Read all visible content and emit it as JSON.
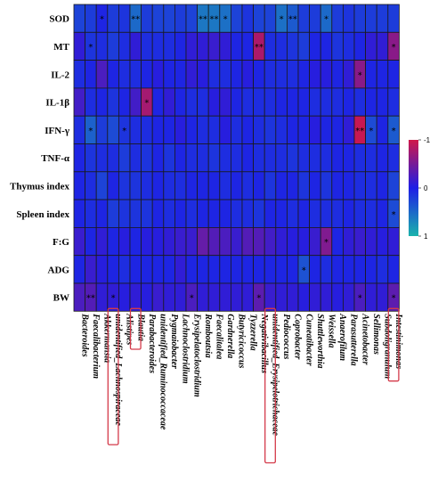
{
  "chart_data": {
    "type": "heatmap",
    "rows": [
      "SOD",
      "MT",
      "IL-2",
      "IL-1β",
      "IFN-γ",
      "TNF-α",
      "Thymus index",
      "Spleen index",
      "F:G",
      "ADG",
      "BW"
    ],
    "columns": [
      "Bacteroides",
      "Faecalibacterium",
      "Akkermansia",
      "unidentified_Lachnospiraceae",
      "Alistipes",
      "Blautia",
      "Parabacteroides",
      "unidentified_Ruminococcaceae",
      "Pygmaiobacter",
      "Lachnoclostridium",
      "Erysipelatoclostridium",
      "Romboutsia",
      "Faecalitalea",
      "Gardnerella",
      "Butyricicoccus",
      "Tyzzerella",
      "Negativibacillus",
      "unidentified_Erysipelotrichaceae",
      "Pediococcus",
      "Coprobacter",
      "Cuneatibacter",
      "Shuttleworthia",
      "Weissella",
      "Anaerofilum",
      "Parasutterella",
      "Acinetobacter",
      "Sellimonas",
      "Subdoligranulum",
      "Intestinimonas"
    ],
    "values": [
      [
        0.25,
        0.2,
        0.05,
        0.2,
        0.15,
        0.5,
        0.2,
        0.25,
        0.25,
        0.2,
        0.25,
        0.6,
        0.6,
        0.55,
        0.25,
        0.15,
        0.25,
        0.25,
        0.55,
        0.4,
        0.2,
        0.2,
        0.5,
        0.2,
        0.15,
        0.2,
        0.2,
        0.2,
        0.2
      ],
      [
        -0.1,
        0.15,
        0.1,
        0.2,
        0.1,
        -0.1,
        0.1,
        0.1,
        0.1,
        0.05,
        -0.1,
        -0.1,
        -0.15,
        -0.1,
        0.05,
        0.05,
        -0.8,
        0.1,
        0.1,
        0.15,
        0.2,
        0.05,
        0.05,
        0.15,
        0.1,
        0.05,
        -0.1,
        -0.1,
        -0.6
      ],
      [
        0.1,
        0.05,
        -0.25,
        0.05,
        0.1,
        0.1,
        0.05,
        -0.05,
        0.05,
        0.05,
        -0.1,
        -0.05,
        0.1,
        0.1,
        0.05,
        -0.05,
        0.05,
        0.1,
        0.1,
        0.1,
        0.05,
        -0.05,
        -0.05,
        0.05,
        -0.1,
        -0.6,
        0.05,
        0.05,
        0.05
      ],
      [
        -0.2,
        0.1,
        0.05,
        0.15,
        0.05,
        -0.2,
        -0.75,
        0.05,
        -0.1,
        0.05,
        0.1,
        0.1,
        -0.05,
        -0.1,
        0.05,
        0.1,
        0.1,
        0.1,
        0.05,
        0.05,
        0.05,
        0.1,
        0.1,
        0.1,
        0.05,
        0.1,
        0.05,
        0.05,
        0.1
      ],
      [
        0.1,
        0.45,
        0.2,
        0.3,
        0.15,
        0.1,
        0.1,
        0.05,
        0.05,
        -0.05,
        0.05,
        0.1,
        0.1,
        -0.05,
        0.1,
        0.05,
        0.1,
        0.15,
        0.1,
        0.05,
        0.05,
        -0.05,
        0.05,
        0.05,
        -0.1,
        -0.95,
        0.3,
        0.05,
        0.4
      ],
      [
        0.05,
        0.15,
        0.1,
        0.1,
        0.2,
        0.1,
        0.15,
        0.05,
        0.15,
        0.05,
        0.1,
        0.1,
        0.15,
        0.1,
        0.1,
        0.05,
        0.1,
        0.1,
        0.1,
        0.15,
        0.1,
        0.1,
        0.1,
        0.05,
        0.05,
        0.1,
        0.1,
        0.05,
        0.1
      ],
      [
        0.05,
        0.1,
        0.25,
        0.05,
        0.15,
        0.15,
        0.1,
        0.05,
        0.1,
        0.1,
        0.05,
        0.05,
        0.05,
        0.1,
        0.05,
        0.1,
        0.05,
        0.15,
        0.05,
        0.05,
        0.15,
        0.05,
        0.15,
        0.05,
        0.05,
        0.1,
        0.1,
        0.05,
        0.25
      ],
      [
        0.05,
        0.1,
        0.05,
        0.2,
        0.15,
        0.15,
        0.15,
        0.05,
        0.1,
        0.05,
        0.1,
        0.05,
        0.05,
        0.05,
        0.1,
        0.1,
        0.15,
        0.05,
        0.05,
        0.1,
        0.05,
        0.1,
        0.1,
        0.1,
        0.05,
        0.1,
        0.1,
        0.05,
        0.3
      ],
      [
        -0.15,
        0.05,
        -0.1,
        0.05,
        -0.05,
        0.05,
        -0.05,
        -0.05,
        -0.1,
        -0.15,
        -0.15,
        -0.4,
        -0.3,
        -0.25,
        -0.15,
        -0.3,
        -0.3,
        -0.2,
        -0.1,
        -0.05,
        -0.05,
        -0.15,
        -0.55,
        0.05,
        -0.1,
        -0.15,
        -0.1,
        -0.05,
        -0.1
      ],
      [
        0.05,
        -0.15,
        -0.05,
        0.05,
        0.1,
        0.05,
        0.05,
        0.05,
        0.05,
        -0.1,
        0.05,
        0.05,
        0.05,
        0.05,
        0.05,
        0.05,
        0.05,
        0.05,
        0.05,
        0.05,
        0.35,
        0.05,
        0.1,
        0.05,
        0.05,
        0.05,
        0.05,
        0.1,
        0.05
      ],
      [
        -0.25,
        -0.3,
        -0.1,
        -0.1,
        -0.05,
        -0.1,
        -0.05,
        -0.15,
        -0.1,
        -0.1,
        -0.25,
        -0.1,
        -0.1,
        -0.1,
        -0.1,
        -0.1,
        -0.35,
        -0.15,
        -0.1,
        -0.1,
        -0.05,
        -0.1,
        -0.1,
        -0.05,
        -0.1,
        -0.25,
        -0.1,
        -0.1,
        -0.35
      ]
    ],
    "annotations": [
      {
        "row": 0,
        "col": 2,
        "text": "*"
      },
      {
        "row": 0,
        "col": 5,
        "text": "**"
      },
      {
        "row": 0,
        "col": 11,
        "text": "**"
      },
      {
        "row": 0,
        "col": 12,
        "text": "**"
      },
      {
        "row": 0,
        "col": 13,
        "text": "*"
      },
      {
        "row": 0,
        "col": 18,
        "text": "*"
      },
      {
        "row": 0,
        "col": 19,
        "text": "**"
      },
      {
        "row": 0,
        "col": 22,
        "text": "*"
      },
      {
        "row": 1,
        "col": 1,
        "text": "*"
      },
      {
        "row": 1,
        "col": 16,
        "text": "**"
      },
      {
        "row": 1,
        "col": 28,
        "text": "*"
      },
      {
        "row": 2,
        "col": 25,
        "text": "*"
      },
      {
        "row": 3,
        "col": 6,
        "text": "*"
      },
      {
        "row": 4,
        "col": 1,
        "text": "*"
      },
      {
        "row": 4,
        "col": 4,
        "text": "*"
      },
      {
        "row": 4,
        "col": 25,
        "text": "**"
      },
      {
        "row": 4,
        "col": 26,
        "text": "*"
      },
      {
        "row": 4,
        "col": 28,
        "text": "*"
      },
      {
        "row": 7,
        "col": 28,
        "text": "*"
      },
      {
        "row": 8,
        "col": 22,
        "text": "*"
      },
      {
        "row": 9,
        "col": 20,
        "text": "*"
      },
      {
        "row": 10,
        "col": 1,
        "text": "**"
      },
      {
        "row": 10,
        "col": 3,
        "text": "*"
      },
      {
        "row": 10,
        "col": 10,
        "text": "*"
      },
      {
        "row": 10,
        "col": 16,
        "text": "*"
      },
      {
        "row": 10,
        "col": 25,
        "text": "*"
      },
      {
        "row": 10,
        "col": 28,
        "text": "*"
      }
    ],
    "highlighted_columns": [
      3,
      5,
      17,
      28
    ],
    "colorbar": {
      "ticks": [
        -1,
        0,
        1
      ],
      "tick_labels": [
        "-1",
        "0",
        "1"
      ],
      "colors": {
        "neg": "#d0184a",
        "mid": "#1e1ee6",
        "pos": "#1ab3ac"
      }
    }
  }
}
